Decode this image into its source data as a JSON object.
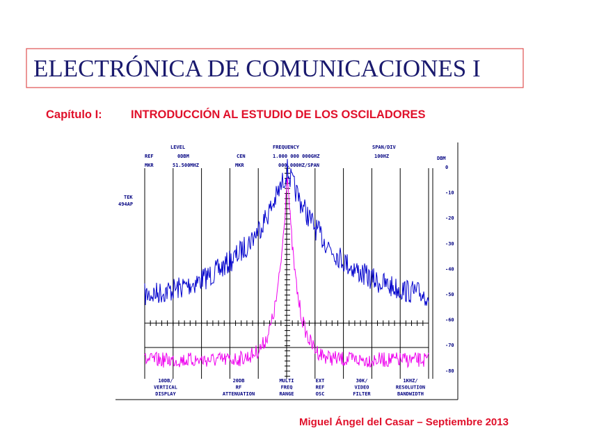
{
  "header": {
    "title": "ELECTRÓNICA DE COMUNICACIONES I"
  },
  "chapter": {
    "label": "Capítulo I:",
    "title": "INTRODUCCIÓN AL ESTUDIO DE LOS OSCILADORES"
  },
  "screen": {
    "readouts": [
      [
        "LEVEL",
        "FREQUENCY",
        "SPAN/DIV"
      ],
      [
        "REF",
        "0DBM",
        "CEN",
        "1.000 000 000GHZ",
        "100HZ",
        "DBM"
      ],
      [
        "MKR",
        "51.500MHZ",
        "MKR",
        "000.000HZ/SPAN"
      ]
    ],
    "model": [
      "TEK",
      "494AP"
    ],
    "scale": [
      "0",
      "-10",
      "-20",
      "-30",
      "-40",
      "-50",
      "-60",
      "-70",
      "-80"
    ],
    "controls": [
      {
        "setting": "10DB/",
        "name": "VERTICAL",
        "sub": "DISPLAY"
      },
      {
        "setting": "20DB",
        "name": "RF",
        "sub": "ATTENUATION"
      },
      {
        "setting": "MULTI",
        "name": "FREQ",
        "sub": "RANGE"
      },
      {
        "setting": "EXT",
        "name": "REF",
        "sub": "OSC"
      },
      {
        "setting": "30K/",
        "name": "VIDEO",
        "sub": "FILTER"
      },
      {
        "setting": "1KHZ/",
        "name": "RESOLUTION",
        "sub": "BANDWIDTH"
      }
    ]
  },
  "footer": "Miguel Ángel del Casar – Septiembre 2013"
}
